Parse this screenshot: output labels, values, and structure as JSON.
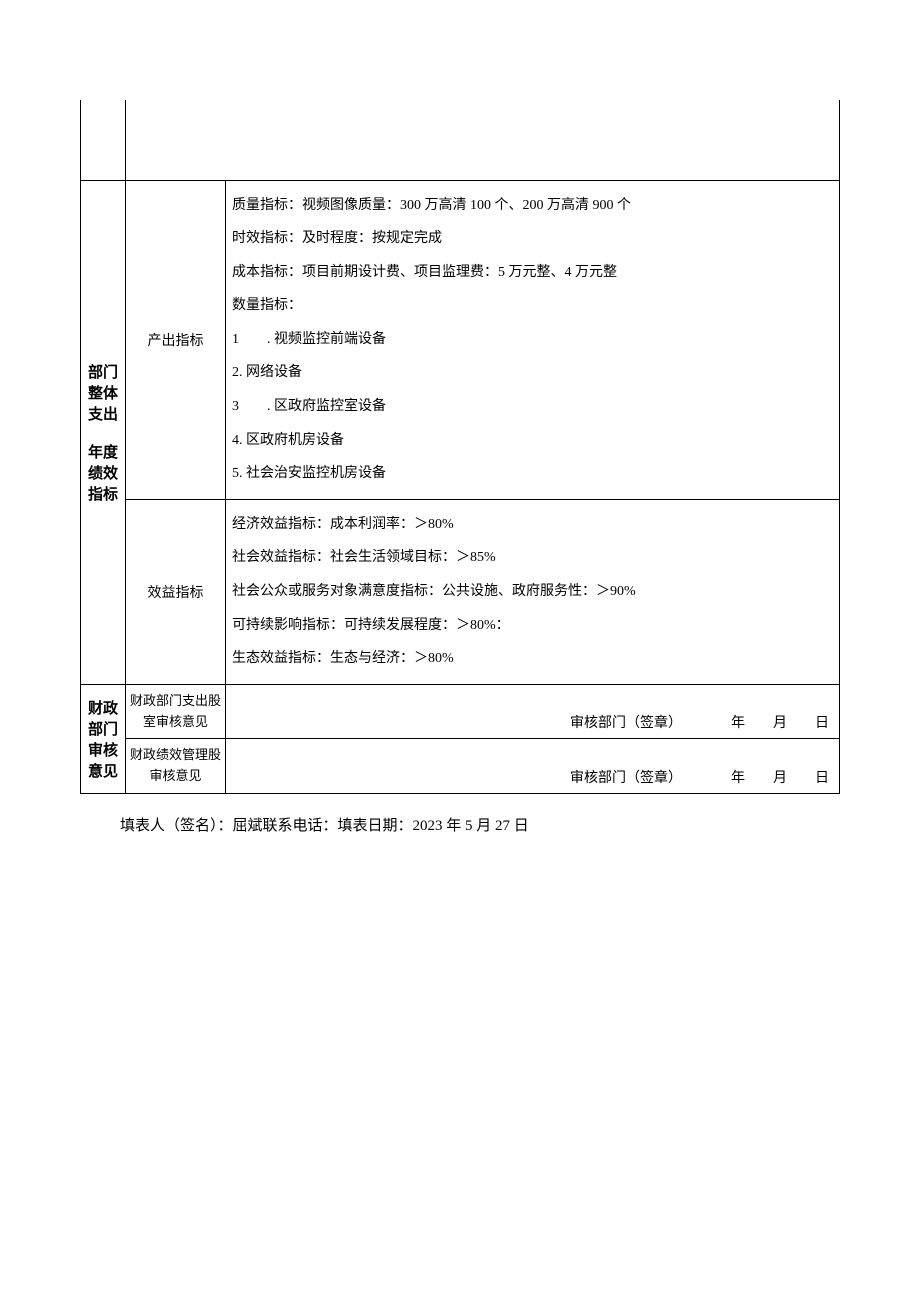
{
  "colors": {
    "background": "#ffffff",
    "border": "#000000",
    "text": "#000000"
  },
  "typography": {
    "base_fontsize": 14,
    "label_fontsize": 15,
    "font_family": "SimSun"
  },
  "section1": {
    "row_label": "部门整体支出",
    "row_label_2": "年度绩效指标",
    "output": {
      "type_label": "产出指标",
      "quality": "质量指标：视频图像质量：300 万高清 100 个、200 万高清 900 个",
      "timeliness": "时效指标：及时程度：按规定完成",
      "cost": "成本指标：项目前期设计费、项目监理费：5 万元整、4 万元整",
      "quantity_header": "数量指标：",
      "quantity_items": [
        "1        . 视频监控前端设备",
        "2. 网络设备",
        "3        . 区政府监控室设备",
        "4. 区政府机房设备",
        "5. 社会治安监控机房设备"
      ]
    },
    "benefit": {
      "type_label": "效益指标",
      "economic": "经济效益指标：成本利润率：＞80%",
      "social": "社会效益指标：社会生活领域目标：＞85%",
      "satisfaction": "社会公众或服务对象满意度指标：公共设施、政府服务性：＞90%",
      "sustainable": "可持续影响指标：可持续发展程度：＞80%：",
      "ecological": "生态效益指标：生态与经济：＞80%"
    }
  },
  "section2": {
    "row_label": "财政部门审核意见",
    "review1_label": "财政部门支出股室审核意见",
    "review2_label": "财政绩效管理股审核意见",
    "signature_text": "审核部门（签章）              年        月        日"
  },
  "footer": {
    "text": "填表人（签名）：屈斌联系电话：填表日期：2023 年 5 月 27 日"
  }
}
